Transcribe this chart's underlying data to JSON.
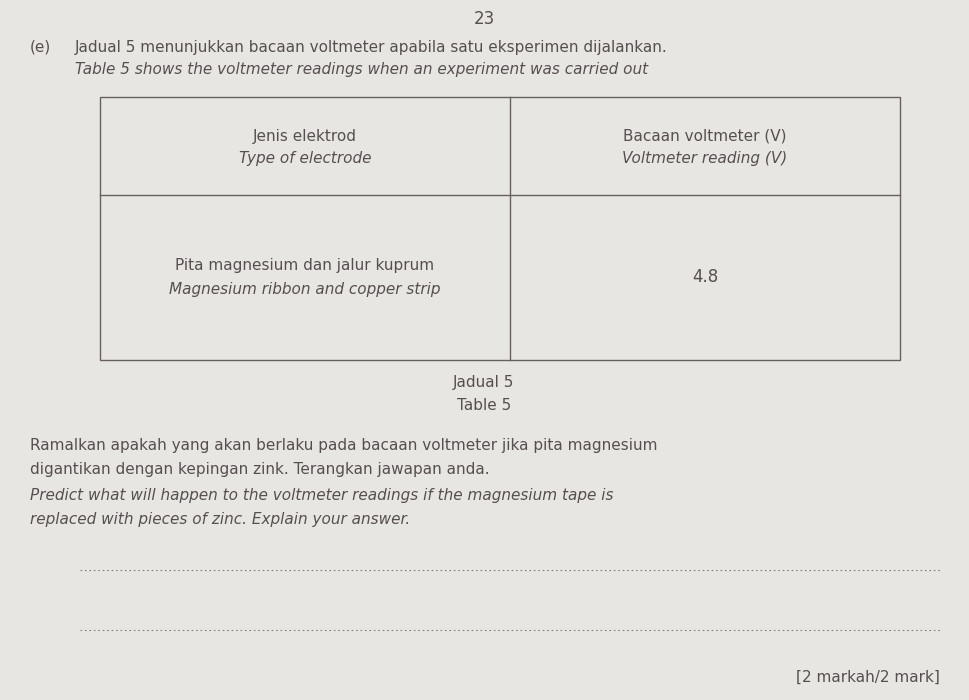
{
  "page_number": "23",
  "question_label": "(e)",
  "malay_intro": "Jadual 5 menunjukkan bacaan voltmeter apabila satu eksperimen dijalankan.",
  "english_intro": "Table 5 shows the voltmeter readings when an experiment was carried out",
  "table_header_col1_line1": "Jenis elektrod",
  "table_header_col1_line2": "Type of electrode",
  "table_header_col2_line1": "Bacaan voltmeter (V)",
  "table_header_col2_line2": "Voltmeter reading (V)",
  "table_data_col1_line1": "Pita magnesium dan jalur kuprum",
  "table_data_col1_line2": "Magnesium ribbon and copper strip",
  "table_data_col2": "4.8",
  "table_caption_malay": "Jadual 5",
  "table_caption_english": "Table 5",
  "question_malay_line1": "Ramalkan apakah yang akan berlaku pada bacaan voltmeter jika pita magnesium",
  "question_malay_line2": "digantikan dengan kepingan zink. Terangkan jawapan anda.",
  "question_english_line1": "Predict what will happen to the voltmeter readings if the magnesium tape is",
  "question_english_line2": "replaced with pieces of zinc. Explain your answer.",
  "marks": "[2 markah/2 mark]",
  "bg_color": "#e8e6e3",
  "text_color": "#555050",
  "table_border_color": "#666060",
  "dotted_line_color": "#888080"
}
